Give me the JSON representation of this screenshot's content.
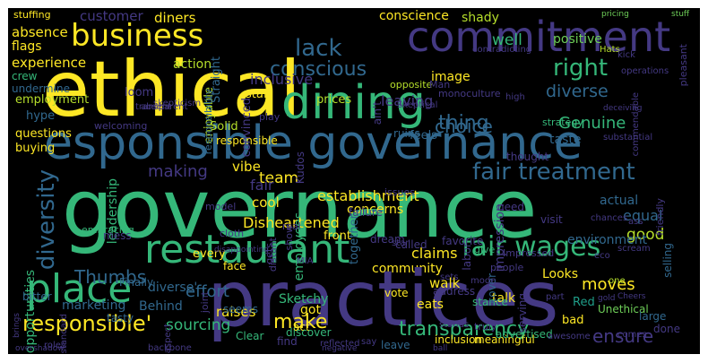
{
  "wordcloud": {
    "palette": {
      "yellow": "#fde725",
      "green": "#35b779",
      "teal": "#1f9e89",
      "blue": "#31688e",
      "indigo": "#443983",
      "purple": "#440154",
      "lime": "#b5de2b"
    },
    "words": [
      {
        "text": "stuffing",
        "color": "#fde725"
      },
      {
        "text": "customer",
        "color": "#443983"
      },
      {
        "text": "diners",
        "color": "#fde725"
      },
      {
        "text": "conscience",
        "color": "#fde725"
      },
      {
        "text": "shady",
        "color": "#b5de2b"
      },
      {
        "text": "pricing",
        "color": "#6ece58"
      },
      {
        "text": "stuff",
        "color": "#6ece58"
      },
      {
        "text": "absence",
        "color": "#fde725"
      },
      {
        "text": "business",
        "color": "#fde725"
      },
      {
        "text": "commitment",
        "color": "#443983"
      },
      {
        "text": "well",
        "color": "#35b779"
      },
      {
        "text": "positive",
        "color": "#6ece58"
      },
      {
        "text": "flags",
        "color": "#fde725"
      },
      {
        "text": "lack",
        "color": "#31688e"
      },
      {
        "text": "conscious",
        "color": "#31688e"
      },
      {
        "text": "Hats",
        "color": "#b5de2b"
      },
      {
        "text": "experience",
        "color": "#fde725"
      },
      {
        "text": "ethical",
        "color": "#fde725"
      },
      {
        "text": "dining",
        "color": "#35b779"
      },
      {
        "text": "right",
        "color": "#35b779"
      },
      {
        "text": "action",
        "color": "#b5de2b"
      },
      {
        "text": "inclusive",
        "color": "#443983"
      },
      {
        "text": "staff",
        "color": "#fde725"
      },
      {
        "text": "leaving",
        "color": "#443983"
      },
      {
        "text": "diverse",
        "color": "#31688e"
      },
      {
        "text": "crew",
        "color": "#35b779"
      },
      {
        "text": "enjoyable",
        "color": "#b5de2b"
      },
      {
        "text": "image",
        "color": "#fde725"
      },
      {
        "text": "Genuine",
        "color": "#35b779"
      },
      {
        "text": "thing",
        "color": "#31688e"
      },
      {
        "text": "choice",
        "color": "#31688e"
      },
      {
        "text": "esponsible governance",
        "color": "#31688e"
      },
      {
        "text": "making",
        "color": "#443983"
      },
      {
        "text": "fair treatment",
        "color": "#31688e"
      },
      {
        "text": "governance",
        "color": "#35b779"
      },
      {
        "text": "vibe",
        "color": "#fde725"
      },
      {
        "text": "team",
        "color": "#fde725"
      },
      {
        "text": "cool",
        "color": "#fde725"
      },
      {
        "text": "establishment",
        "color": "#fde725"
      },
      {
        "text": "equal",
        "color": "#31688e"
      },
      {
        "text": "fair",
        "color": "#443983"
      },
      {
        "text": "diversity",
        "color": "#31688e"
      },
      {
        "text": "leadership",
        "color": "#35b779"
      },
      {
        "text": "restaurant",
        "color": "#35b779"
      },
      {
        "text": "fair wages",
        "color": "#35b779"
      },
      {
        "text": "good",
        "color": "#b5de2b"
      },
      {
        "text": "Disheartened",
        "color": "#fde725"
      },
      {
        "text": "place",
        "color": "#35b779"
      },
      {
        "text": "claims",
        "color": "#fde725"
      },
      {
        "text": "Thumbs",
        "color": "#31688e"
      },
      {
        "text": "community",
        "color": "#fde725"
      },
      {
        "text": "Looks",
        "color": "#fde725"
      },
      {
        "text": "practices",
        "color": "#443983"
      },
      {
        "text": "talk",
        "color": "#fde725"
      },
      {
        "text": "diverse'",
        "color": "#31688e"
      },
      {
        "text": "effort",
        "color": "#31688e"
      },
      {
        "text": "walk",
        "color": "#fde725"
      },
      {
        "text": "marketing",
        "color": "#31688e"
      },
      {
        "text": "Behind",
        "color": "#31688e"
      },
      {
        "text": "raises",
        "color": "#fde725"
      },
      {
        "text": "Sketchy",
        "color": "#35b779"
      },
      {
        "text": "eats",
        "color": "#fde725"
      },
      {
        "text": "moves",
        "color": "#fde725"
      },
      {
        "text": "responsible'",
        "color": "#fde725"
      },
      {
        "text": "sourcing",
        "color": "#35b779"
      },
      {
        "text": "make",
        "color": "#fde725"
      },
      {
        "text": "transparency",
        "color": "#35b779"
      },
      {
        "text": "ensure",
        "color": "#443983"
      },
      {
        "text": "got",
        "color": "#fde725"
      },
      {
        "text": "act",
        "color": "#fde725"
      },
      {
        "text": "leave",
        "color": "#31688e"
      },
      {
        "text": "concerns",
        "color": "#fde725"
      },
      {
        "text": "front",
        "color": "#fde725"
      },
      {
        "text": "employees",
        "color": "#35b779"
      },
      {
        "text": "Unethical",
        "color": "#6ece58"
      },
      {
        "text": "selling",
        "color": "#31688e"
      },
      {
        "text": "prices",
        "color": "#b5de2b"
      },
      {
        "text": "feels",
        "color": "#31688e"
      },
      {
        "text": "taste",
        "color": "#31688e"
      },
      {
        "text": "Solid",
        "color": "#b5de2b"
      },
      {
        "text": "responsible",
        "color": "#fde725"
      },
      {
        "text": "Straight",
        "color": "#31688e"
      },
      {
        "text": "together",
        "color": "#31688e"
      },
      {
        "text": "opportunities",
        "color": "#35b779"
      },
      {
        "text": "every",
        "color": "#fde725"
      },
      {
        "text": "face",
        "color": "#fde725"
      },
      {
        "text": "impression",
        "color": "#443983"
      },
      {
        "text": "actual",
        "color": "#31688e"
      },
      {
        "text": "environment",
        "color": "#31688e"
      },
      {
        "text": "Clear",
        "color": "#35b779"
      },
      {
        "text": "discover",
        "color": "#35b779"
      },
      {
        "text": "stance",
        "color": "#35b779"
      },
      {
        "text": "vote",
        "color": "#fde725"
      },
      {
        "text": "address",
        "color": "#443983"
      },
      {
        "text": "Red",
        "color": "#1f9e89"
      },
      {
        "text": "bad",
        "color": "#fde725"
      },
      {
        "text": "large",
        "color": "#31688e"
      },
      {
        "text": "done",
        "color": "#443983"
      },
      {
        "text": "find",
        "color": "#443983"
      },
      {
        "text": "inclusion",
        "color": "#fde725"
      },
      {
        "text": "meaningful",
        "color": "#fde725"
      },
      {
        "text": "advertised",
        "color": "#35b779"
      },
      {
        "text": "serving",
        "color": "#443983"
      },
      {
        "text": "cover",
        "color": "#31688e"
      },
      {
        "text": "Finally",
        "color": "#31688e"
      },
      {
        "text": "bitter",
        "color": "#31688e"
      },
      {
        "text": "tasty",
        "color": "#31688e"
      },
      {
        "text": "mess",
        "color": "#443983"
      },
      {
        "text": "embracing",
        "color": "#35b779"
      },
      {
        "text": "employment",
        "color": "#b5de2b"
      },
      {
        "text": "hype",
        "color": "#31688e"
      },
      {
        "text": "questions",
        "color": "#fde725"
      },
      {
        "text": "buying",
        "color": "#fde725"
      },
      {
        "text": "undermine",
        "color": "#31688e"
      },
      {
        "text": "loom",
        "color": "#443983"
      },
      {
        "text": "truly",
        "color": "#443983"
      },
      {
        "text": "ruins",
        "color": "#31688e"
      },
      {
        "text": "thought",
        "color": "#443983"
      },
      {
        "text": "seems",
        "color": "#31688e"
      },
      {
        "text": "Kudos",
        "color": "#443983"
      },
      {
        "text": "failure",
        "color": "#443983"
      },
      {
        "text": "dream",
        "color": "#443983"
      },
      {
        "text": "called",
        "color": "#443983"
      },
      {
        "text": "need",
        "color": "#443983"
      },
      {
        "text": "visit",
        "color": "#443983"
      },
      {
        "text": "issues",
        "color": "#443983"
      },
      {
        "text": "favorite",
        "color": "#443983"
      },
      {
        "text": "ain't",
        "color": "#443983"
      },
      {
        "text": "welcoming",
        "color": "#443983"
      },
      {
        "text": "strategy",
        "color": "#35b779"
      },
      {
        "text": "pleasant",
        "color": "#443983"
      },
      {
        "text": "substantial",
        "color": "#443983"
      },
      {
        "text": "operations",
        "color": "#443983"
      },
      {
        "text": "deceiving",
        "color": "#443983"
      },
      {
        "text": "convinced",
        "color": "#443983"
      },
      {
        "text": "opposite",
        "color": "#b5de2b"
      },
      {
        "text": "give",
        "color": "#35b779"
      },
      {
        "text": "labor",
        "color": "#443983"
      },
      {
        "text": "people",
        "color": "#443983"
      },
      {
        "text": "Impressed",
        "color": "#443983"
      },
      {
        "text": "friendly",
        "color": "#443983"
      },
      {
        "text": "cloth",
        "color": "#443983"
      },
      {
        "text": "distant",
        "color": "#443983"
      },
      {
        "text": "responsibility",
        "color": "#31688e"
      },
      {
        "text": "Man",
        "color": "#443983"
      },
      {
        "text": "monoculture",
        "color": "#443983"
      },
      {
        "text": "Skeptical",
        "color": "#443983"
      },
      {
        "text": "play",
        "color": "#443983"
      },
      {
        "text": "absent",
        "color": "#443983"
      },
      {
        "text": "transparent",
        "color": "#443983"
      },
      {
        "text": "model",
        "color": "#443983"
      },
      {
        "text": "real",
        "color": "#443983"
      },
      {
        "text": "chances",
        "color": "#443983"
      },
      {
        "text": "scream",
        "color": "#443983"
      },
      {
        "text": "ass",
        "color": "#443983"
      },
      {
        "text": "MIA",
        "color": "#443983"
      },
      {
        "text": "eco",
        "color": "#443983"
      },
      {
        "text": "kick",
        "color": "#443983"
      },
      {
        "text": "awesome",
        "color": "#443983"
      },
      {
        "text": "star",
        "color": "#443983"
      },
      {
        "text": "sets",
        "color": "#443983"
      },
      {
        "text": "one",
        "color": "#b5de2b"
      },
      {
        "text": "Cheers",
        "color": "#443983"
      },
      {
        "text": "gold",
        "color": "#443983"
      },
      {
        "text": "gets",
        "color": "#443983"
      },
      {
        "text": "show",
        "color": "#443983"
      },
      {
        "text": "joint",
        "color": "#443983"
      },
      {
        "text": "reflected",
        "color": "#443983"
      },
      {
        "text": "negative",
        "color": "#443983"
      },
      {
        "text": "commendable",
        "color": "#443983"
      },
      {
        "text": "part",
        "color": "#443983"
      },
      {
        "text": "comes",
        "color": "#443983"
      },
      {
        "text": "backbone",
        "color": "#443983"
      },
      {
        "text": "aspect",
        "color": "#443983"
      },
      {
        "text": "standard",
        "color": "#443983"
      },
      {
        "text": "roles",
        "color": "#443983"
      },
      {
        "text": "brings",
        "color": "#443983"
      },
      {
        "text": "overshadow",
        "color": "#443983"
      },
      {
        "text": "disappointing",
        "color": "#443983"
      },
      {
        "text": "say",
        "color": "#443983"
      },
      {
        "text": "ball",
        "color": "#443983"
      },
      {
        "text": "mode",
        "color": "#443983"
      },
      {
        "text": "skepticism",
        "color": "#443983"
      },
      {
        "text": "stands",
        "color": "#443983"
      },
      {
        "text": "contradicting",
        "color": "#443983"
      },
      {
        "text": "high",
        "color": "#443983"
      }
    ]
  }
}
